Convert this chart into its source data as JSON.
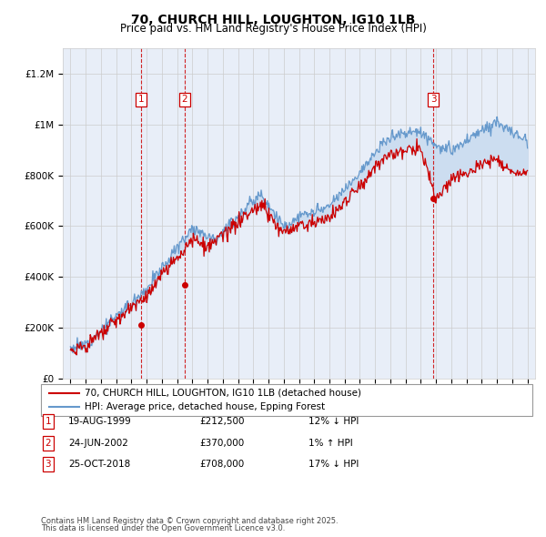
{
  "title": "70, CHURCH HILL, LOUGHTON, IG10 1LB",
  "subtitle": "Price paid vs. HM Land Registry's House Price Index (HPI)",
  "legend_line1": "70, CHURCH HILL, LOUGHTON, IG10 1LB (detached house)",
  "legend_line2": "HPI: Average price, detached house, Epping Forest",
  "footer_line1": "Contains HM Land Registry data © Crown copyright and database right 2025.",
  "footer_line2": "This data is licensed under the Open Government Licence v3.0.",
  "sales": [
    {
      "label": "1",
      "date": "19-AUG-1999",
      "price": 212500,
      "pct": "12%",
      "dir": "↓",
      "x_year": 1999.63
    },
    {
      "label": "2",
      "date": "24-JUN-2002",
      "price": 370000,
      "pct": "1%",
      "dir": "↑",
      "x_year": 2002.48
    },
    {
      "label": "3",
      "date": "25-OCT-2018",
      "price": 708000,
      "pct": "17%",
      "dir": "↓",
      "x_year": 2018.82
    }
  ],
  "ylim": [
    0,
    1300000
  ],
  "xlim": [
    1994.5,
    2025.5
  ],
  "yticks": [
    0,
    200000,
    400000,
    600000,
    800000,
    1000000,
    1200000
  ],
  "ytick_labels": [
    "£0",
    "£200K",
    "£400K",
    "£600K",
    "£800K",
    "£1M",
    "£1.2M"
  ],
  "grid_color": "#cccccc",
  "hpi_color": "#6699cc",
  "price_color": "#cc0000",
  "shade_color": "#ccddf0",
  "dashed_color": "#cc0000",
  "background_color": "#e8eef8"
}
